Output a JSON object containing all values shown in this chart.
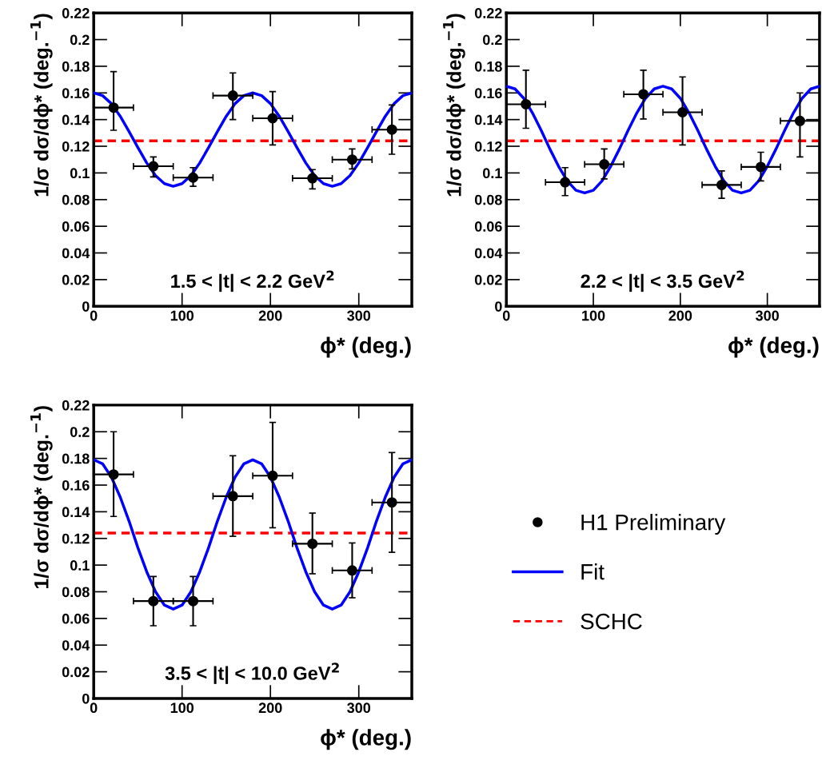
{
  "chart_data": [
    {
      "type": "scatter",
      "x": [
        22.5,
        67.5,
        112.5,
        157.5,
        202.5,
        247.5,
        292.5,
        337.5
      ],
      "xlabel": "ϕ* (deg.)",
      "ylabel": "1/σ dσ/dϕ* (deg.$^{−1}$)",
      "series": [
        {
          "marker": "circle",
          "color": "#000000",
          "values": [
            0.149,
            0.105,
            0.0965,
            0.158,
            0.141,
            0.096,
            0.11,
            0.1325
          ],
          "errors": [
            [
              0.132,
              0.176
            ],
            [
              0.097,
              0.112
            ],
            [
              0.09,
              0.104
            ],
            [
              0.14,
              0.175
            ],
            [
              0.121,
              0.161
            ],
            [
              0.088,
              0.1025
            ],
            [
              0.103,
              0.118
            ],
            [
              0.114,
              0.151
            ]
          ],
          "xerrors": [
            22.5,
            22.5,
            22.5,
            22.5,
            22.5,
            22.5,
            22.5,
            22.5
          ]
        },
        {
          "type": "line",
          "color": "#0000ff",
          "x": [
            0,
            10,
            20,
            30,
            40,
            50,
            60,
            70,
            80,
            90,
            100,
            110,
            120,
            130,
            140,
            150,
            160,
            170,
            180,
            190,
            200,
            210,
            220,
            230,
            240,
            250,
            260,
            270,
            280,
            290,
            300,
            310,
            320,
            330,
            340,
            350,
            360
          ],
          "values": [
            0.16,
            0.158,
            0.152,
            0.1425,
            0.131,
            0.119,
            0.1075,
            0.098,
            0.092,
            0.09,
            0.092,
            0.098,
            0.1075,
            0.119,
            0.131,
            0.1425,
            0.152,
            0.158,
            0.16,
            0.158,
            0.152,
            0.1425,
            0.131,
            0.119,
            0.1075,
            0.098,
            0.092,
            0.09,
            0.092,
            0.098,
            0.1075,
            0.119,
            0.131,
            0.1425,
            0.152,
            0.158,
            0.16
          ]
        }
      ],
      "ref_lines": [
        {
          "axis": "y",
          "value": 0.124,
          "color": "#ff0000",
          "line_style": "dashed"
        }
      ],
      "annotations": [
        "1.5 < |t| < 2.2 GeV$^{2}$"
      ],
      "xlim": [
        0,
        360
      ],
      "xticks": [
        0,
        100,
        200,
        300
      ],
      "ylim": [
        0,
        0.22
      ],
      "yticks": [
        0,
        0.02,
        0.04,
        0.06,
        0.08,
        0.1,
        0.12,
        0.14,
        0.16,
        0.18,
        0.2,
        0.22
      ]
    },
    {
      "type": "scatter",
      "x": [
        22.5,
        67.5,
        112.5,
        157.5,
        202.5,
        247.5,
        292.5,
        337.5
      ],
      "xlabel": "ϕ* (deg.)",
      "ylabel": "1/σ dσ/dϕ* (deg.$^{−1}$)",
      "series": [
        {
          "marker": "circle",
          "color": "#000000",
          "values": [
            0.1515,
            0.093,
            0.1065,
            0.159,
            0.1455,
            0.091,
            0.1045,
            0.139
          ],
          "errors": [
            [
              0.1335,
              0.177
            ],
            [
              0.083,
              0.104
            ],
            [
              0.0955,
              0.118
            ],
            [
              0.1405,
              0.177
            ],
            [
              0.121,
              0.172
            ],
            [
              0.081,
              0.1015
            ],
            [
              0.094,
              0.1155
            ],
            [
              0.112,
              0.16
            ]
          ],
          "xerrors": [
            22.5,
            22.5,
            22.5,
            22.5,
            22.5,
            22.5,
            22.5,
            22.5
          ]
        },
        {
          "type": "line",
          "color": "#0000ff",
          "x": [
            0,
            10,
            20,
            30,
            40,
            50,
            60,
            70,
            80,
            90,
            100,
            110,
            120,
            130,
            140,
            150,
            160,
            170,
            180,
            190,
            200,
            210,
            220,
            230,
            240,
            250,
            260,
            270,
            280,
            290,
            300,
            310,
            320,
            330,
            340,
            350,
            360
          ],
          "values": [
            0.165,
            0.163,
            0.156,
            0.145,
            0.132,
            0.118,
            0.105,
            0.094,
            0.087,
            0.085,
            0.087,
            0.094,
            0.105,
            0.118,
            0.132,
            0.145,
            0.156,
            0.163,
            0.165,
            0.163,
            0.156,
            0.145,
            0.132,
            0.118,
            0.105,
            0.094,
            0.087,
            0.085,
            0.087,
            0.094,
            0.105,
            0.118,
            0.132,
            0.145,
            0.156,
            0.163,
            0.165
          ]
        }
      ],
      "ref_lines": [
        {
          "axis": "y",
          "value": 0.124,
          "color": "#ff0000",
          "line_style": "dashed"
        }
      ],
      "annotations": [
        "2.2 < |t| < 3.5 GeV$^{2}$"
      ],
      "xlim": [
        0,
        360
      ],
      "xticks": [
        0,
        100,
        200,
        300
      ],
      "ylim": [
        0,
        0.22
      ],
      "yticks": [
        0,
        0.02,
        0.04,
        0.06,
        0.08,
        0.1,
        0.12,
        0.14,
        0.16,
        0.18,
        0.2,
        0.22
      ]
    },
    {
      "type": "scatter",
      "x": [
        22.5,
        67.5,
        112.5,
        157.5,
        202.5,
        247.5,
        292.5,
        337.5
      ],
      "xlabel": "ϕ* (deg.)",
      "ylabel": "1/σ dσ/dϕ* (deg.$^{−1}$)",
      "series": [
        {
          "name": "H1 Preliminary",
          "marker": "circle",
          "color": "#000000",
          "values": [
            0.168,
            0.073,
            0.073,
            0.1517,
            0.167,
            0.116,
            0.096,
            0.147
          ],
          "errors": [
            [
              0.1365,
              0.2
            ],
            [
              0.0545,
              0.0915
            ],
            [
              0.0545,
              0.0915
            ],
            [
              0.1216,
              0.182
            ],
            [
              0.128,
              0.207
            ],
            [
              0.0935,
              0.139
            ],
            [
              0.0755,
              0.1166
            ],
            [
              0.1096,
              0.1844
            ]
          ],
          "xerrors": [
            22.5,
            22.5,
            22.5,
            22.5,
            22.5,
            22.5,
            22.5,
            22.5
          ]
        },
        {
          "type": "line",
          "name": "Fit",
          "color": "#0000ff",
          "x": [
            0,
            10,
            20,
            30,
            40,
            50,
            60,
            70,
            80,
            90,
            100,
            110,
            120,
            130,
            140,
            150,
            160,
            170,
            180,
            190,
            200,
            210,
            220,
            230,
            240,
            250,
            260,
            270,
            280,
            290,
            300,
            310,
            320,
            330,
            340,
            350,
            360
          ],
          "values": [
            0.179,
            0.176,
            0.166,
            0.151,
            0.133,
            0.113,
            0.095,
            0.08,
            0.07,
            0.067,
            0.07,
            0.08,
            0.095,
            0.113,
            0.133,
            0.151,
            0.166,
            0.176,
            0.179,
            0.176,
            0.166,
            0.151,
            0.133,
            0.113,
            0.095,
            0.08,
            0.07,
            0.067,
            0.07,
            0.08,
            0.095,
            0.113,
            0.133,
            0.151,
            0.166,
            0.176,
            0.179
          ]
        }
      ],
      "ref_lines": [
        {
          "axis": "y",
          "value": 0.124,
          "label": "SCHC",
          "color": "#ff0000",
          "line_style": "dashed"
        }
      ],
      "annotations": [
        "3.5 < |t| < 10.0 GeV$^{2}$"
      ],
      "legend": "right",
      "xlim": [
        0,
        360
      ],
      "xticks": [
        0,
        100,
        200,
        300
      ],
      "ylim": [
        0,
        0.22
      ],
      "yticks": [
        0,
        0.02,
        0.04,
        0.06,
        0.08,
        0.1,
        0.12,
        0.14,
        0.16,
        0.18,
        0.2,
        0.22
      ]
    }
  ]
}
